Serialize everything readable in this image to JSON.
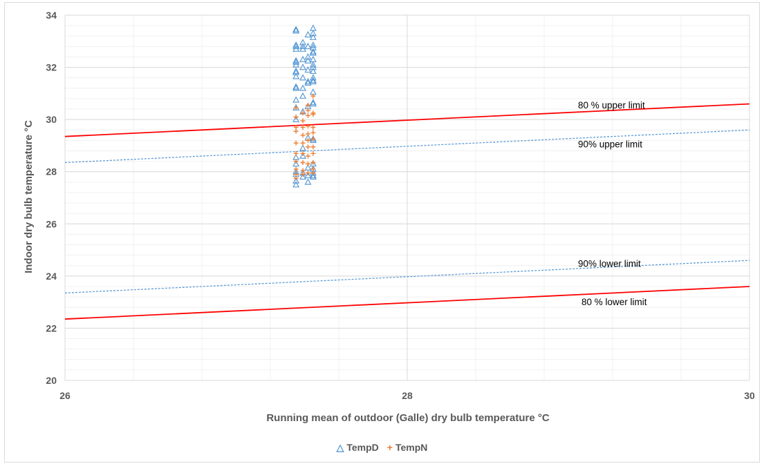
{
  "chart_data": {
    "type": "scatter",
    "title": "",
    "xlabel": "Running mean of outdoor (Galle) dry bulb temperature  °C",
    "ylabel": "Indoor dry bulb temperature  °C",
    "xlim": [
      26,
      30
    ],
    "ylim": [
      20,
      34
    ],
    "x_ticks": [
      "26",
      "28",
      "30"
    ],
    "y_ticks": [
      "20",
      "22",
      "24",
      "26",
      "28",
      "30",
      "32",
      "34"
    ],
    "grid": true,
    "legend_position": "bottom",
    "series": [
      {
        "name": "TempD",
        "marker": "triangle",
        "color": "#5B9BD5",
        "points": [
          [
            27.35,
            33.45
          ],
          [
            27.35,
            33.4
          ],
          [
            27.35,
            32.85
          ],
          [
            27.35,
            32.8
          ],
          [
            27.35,
            32.7
          ],
          [
            27.35,
            32.25
          ],
          [
            27.35,
            32.2
          ],
          [
            27.35,
            32.1
          ],
          [
            27.35,
            31.85
          ],
          [
            27.35,
            31.8
          ],
          [
            27.35,
            31.65
          ],
          [
            27.35,
            31.25
          ],
          [
            27.35,
            31.2
          ],
          [
            27.35,
            30.75
          ],
          [
            27.35,
            30.45
          ],
          [
            27.35,
            30.0
          ],
          [
            27.35,
            28.55
          ],
          [
            27.35,
            28.3
          ],
          [
            27.35,
            28.0
          ],
          [
            27.35,
            27.9
          ],
          [
            27.35,
            27.65
          ],
          [
            27.35,
            27.5
          ],
          [
            27.39,
            32.95
          ],
          [
            27.39,
            32.8
          ],
          [
            27.39,
            32.7
          ],
          [
            27.39,
            32.3
          ],
          [
            27.39,
            32.0
          ],
          [
            27.39,
            31.6
          ],
          [
            27.39,
            31.2
          ],
          [
            27.39,
            30.9
          ],
          [
            27.39,
            30.3
          ],
          [
            27.39,
            28.9
          ],
          [
            27.39,
            28.6
          ],
          [
            27.39,
            27.95
          ],
          [
            27.39,
            27.8
          ],
          [
            27.42,
            33.25
          ],
          [
            27.42,
            32.8
          ],
          [
            27.42,
            32.4
          ],
          [
            27.42,
            32.25
          ],
          [
            27.42,
            31.9
          ],
          [
            27.42,
            31.45
          ],
          [
            27.42,
            31.4
          ],
          [
            27.42,
            30.5
          ],
          [
            27.42,
            29.3
          ],
          [
            27.42,
            28.15
          ],
          [
            27.42,
            27.85
          ],
          [
            27.42,
            27.6
          ],
          [
            27.45,
            33.5
          ],
          [
            27.45,
            33.3
          ],
          [
            27.45,
            33.15
          ],
          [
            27.45,
            32.85
          ],
          [
            27.45,
            32.75
          ],
          [
            27.45,
            32.6
          ],
          [
            27.45,
            32.55
          ],
          [
            27.45,
            32.3
          ],
          [
            27.45,
            32.1
          ],
          [
            27.45,
            32.0
          ],
          [
            27.45,
            31.85
          ],
          [
            27.45,
            31.6
          ],
          [
            27.45,
            31.5
          ],
          [
            27.45,
            31.45
          ],
          [
            27.45,
            31.05
          ],
          [
            27.45,
            30.65
          ],
          [
            27.45,
            30.6
          ],
          [
            27.45,
            29.25
          ],
          [
            27.45,
            29.2
          ],
          [
            27.45,
            28.3
          ],
          [
            27.45,
            28.1
          ],
          [
            27.45,
            27.95
          ],
          [
            27.45,
            27.85
          ],
          [
            27.45,
            27.8
          ]
        ]
      },
      {
        "name": "TempN",
        "marker": "plus",
        "color": "#ED7D31",
        "points": [
          [
            27.35,
            30.45
          ],
          [
            27.35,
            30.1
          ],
          [
            27.35,
            29.7
          ],
          [
            27.35,
            29.55
          ],
          [
            27.35,
            29.1
          ],
          [
            27.35,
            28.7
          ],
          [
            27.35,
            28.4
          ],
          [
            27.35,
            28.1
          ],
          [
            27.35,
            27.9
          ],
          [
            27.35,
            27.75
          ],
          [
            27.39,
            30.25
          ],
          [
            27.39,
            29.95
          ],
          [
            27.39,
            29.7
          ],
          [
            27.39,
            29.4
          ],
          [
            27.39,
            29.1
          ],
          [
            27.39,
            28.7
          ],
          [
            27.39,
            28.35
          ],
          [
            27.39,
            28.05
          ],
          [
            27.39,
            27.9
          ],
          [
            27.42,
            30.55
          ],
          [
            27.42,
            30.35
          ],
          [
            27.42,
            30.15
          ],
          [
            27.42,
            29.75
          ],
          [
            27.42,
            29.45
          ],
          [
            27.42,
            29.2
          ],
          [
            27.42,
            28.95
          ],
          [
            27.42,
            28.6
          ],
          [
            27.42,
            28.3
          ],
          [
            27.42,
            27.95
          ],
          [
            27.45,
            30.9
          ],
          [
            27.45,
            30.25
          ],
          [
            27.45,
            30.2
          ],
          [
            27.45,
            29.7
          ],
          [
            27.45,
            29.5
          ],
          [
            27.45,
            29.25
          ],
          [
            27.45,
            28.95
          ],
          [
            27.45,
            28.7
          ],
          [
            27.45,
            28.35
          ],
          [
            27.45,
            28.1
          ],
          [
            27.45,
            27.95
          ]
        ]
      }
    ],
    "limit_lines": [
      {
        "label": "80 % upper limit",
        "color": "#FF0000",
        "style": "solid",
        "x": [
          26,
          30
        ],
        "y": [
          29.35,
          30.6
        ]
      },
      {
        "label": "90% upper limit",
        "color": "#5B9BD5",
        "style": "dashed",
        "x": [
          26,
          30
        ],
        "y": [
          28.35,
          29.6
        ]
      },
      {
        "label": "90% lower limit",
        "color": "#5B9BD5",
        "style": "dashed",
        "x": [
          26,
          30
        ],
        "y": [
          23.35,
          24.6
        ]
      },
      {
        "label": "80 % lower limit",
        "color": "#FF0000",
        "style": "solid",
        "x": [
          26,
          30
        ],
        "y": [
          22.35,
          23.6
        ]
      }
    ]
  }
}
